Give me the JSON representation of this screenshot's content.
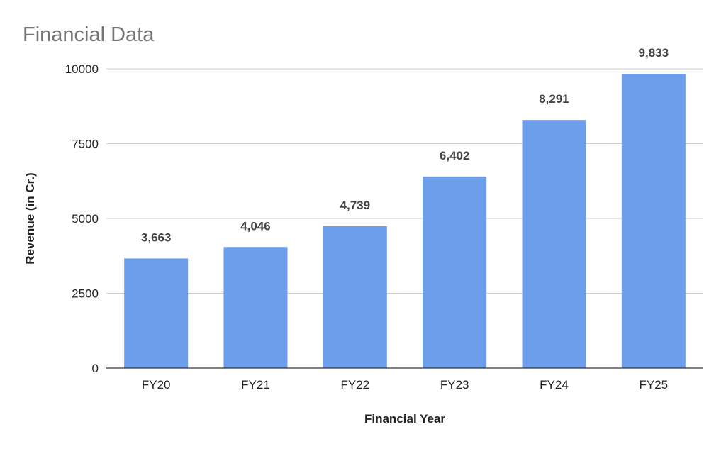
{
  "chart_data": {
    "type": "bar",
    "title": "Financial Data",
    "xlabel": "Financial Year",
    "ylabel": "Revenue (in Cr.)",
    "categories": [
      "FY20",
      "FY21",
      "FY22",
      "FY23",
      "FY24",
      "FY25"
    ],
    "values": [
      3663,
      4046,
      4739,
      6402,
      8291,
      9833
    ],
    "data_labels": [
      "3,663",
      "4,046",
      "4,739",
      "6,402",
      "8,291",
      "9,833"
    ],
    "yticks": [
      0,
      2500,
      5000,
      7500,
      10000
    ],
    "ytick_labels": [
      "0",
      "2500",
      "5000",
      "7500",
      "10000"
    ],
    "ylim": [
      0,
      10000
    ],
    "grid": true,
    "legend": "none",
    "bar_color": "#6d9eeb"
  }
}
